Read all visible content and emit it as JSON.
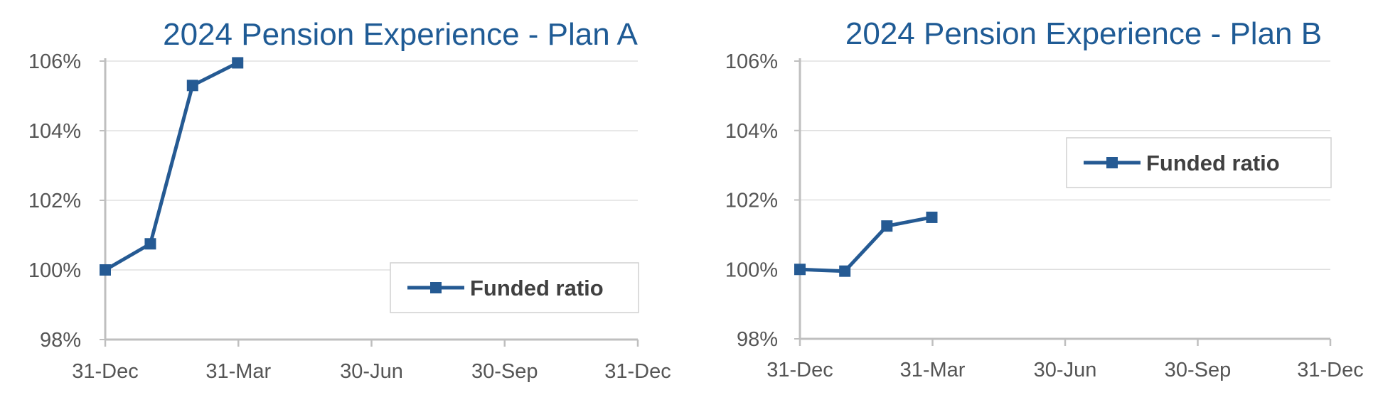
{
  "chart_data": [
    {
      "type": "line",
      "title": "2024 Pension Experience - Plan A",
      "xlabel": "",
      "ylabel": "",
      "x_ticks": [
        "31-Dec",
        "31-Mar",
        "30-Jun",
        "30-Sep",
        "31-Dec"
      ],
      "xlim": [
        "2023-12-31",
        "2024-12-31"
      ],
      "y_ticks": [
        "106%",
        "104%",
        "102%",
        "100%",
        "98%"
      ],
      "ylim": [
        98,
        106
      ],
      "grid": "horizontal",
      "legend_position": "bottom-right",
      "series": [
        {
          "name": "Funded ratio",
          "color": "#255a93",
          "marker": "square",
          "x": [
            "2023-12-31",
            "2024-01-31",
            "2024-02-29",
            "2024-03-31"
          ],
          "y": [
            100.0,
            100.75,
            105.3,
            105.95
          ]
        }
      ]
    },
    {
      "type": "line",
      "title": "2024 Pension Experience - Plan B",
      "xlabel": "",
      "ylabel": "",
      "x_ticks": [
        "31-Dec",
        "31-Mar",
        "30-Jun",
        "30-Sep",
        "31-Dec"
      ],
      "xlim": [
        "2023-12-31",
        "2024-12-31"
      ],
      "y_ticks": [
        "106%",
        "104%",
        "102%",
        "100%",
        "98%"
      ],
      "ylim": [
        98,
        106
      ],
      "grid": "horizontal",
      "legend_position": "top-right",
      "series": [
        {
          "name": "Funded ratio",
          "color": "#255a93",
          "marker": "square",
          "x": [
            "2023-12-31",
            "2024-01-31",
            "2024-02-29",
            "2024-03-31"
          ],
          "y": [
            100.0,
            99.95,
            101.25,
            101.5
          ]
        }
      ]
    }
  ]
}
